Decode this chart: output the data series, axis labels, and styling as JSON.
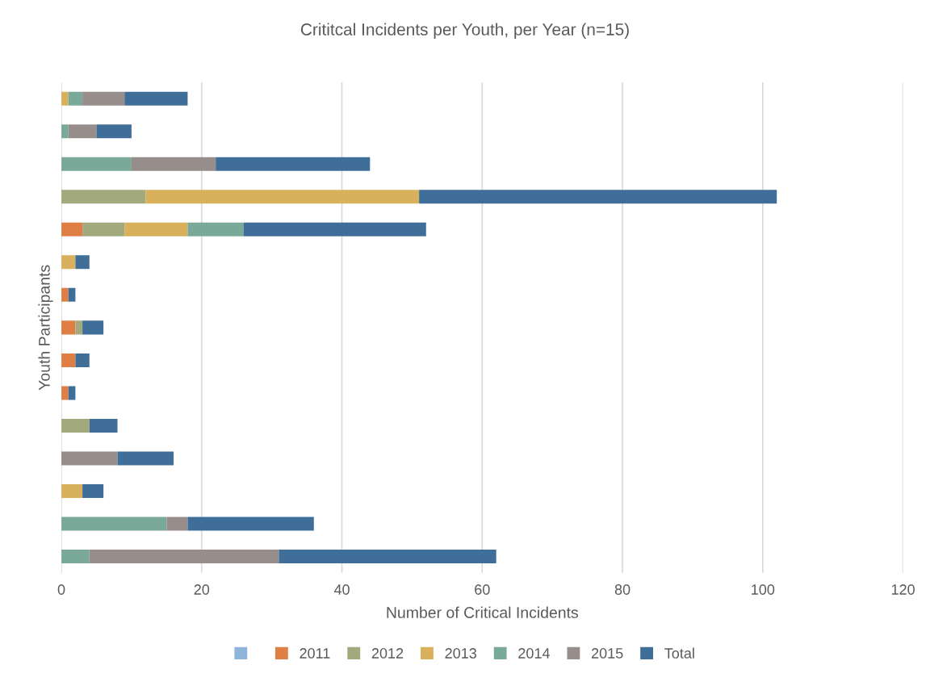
{
  "chart_data": {
    "type": "bar",
    "orientation": "horizontal",
    "stacked": true,
    "title": "Crititcal Incidents per Youth, per Year (n=15)",
    "xlabel": "Number of Critical Incidents",
    "ylabel": "Youth Participants",
    "categories": [
      null,
      null,
      null,
      null,
      null,
      null,
      null,
      null,
      null,
      null,
      null,
      null,
      null,
      null,
      null
    ],
    "series": [
      {
        "color": "#8fb4d9",
        "values": [
          0,
          0,
          0,
          0,
          0,
          0,
          0,
          0,
          0,
          0,
          0,
          0,
          0,
          0,
          0
        ]
      },
      {
        "name": "2011",
        "color": "#e07f45",
        "values": [
          0,
          0,
          0,
          0,
          3,
          0,
          1,
          2,
          2,
          1,
          0,
          0,
          0,
          0,
          0
        ]
      },
      {
        "name": "2012",
        "color": "#a2a97c",
        "values": [
          0,
          0,
          0,
          12,
          6,
          0,
          0,
          1,
          0,
          0,
          4,
          0,
          0,
          0,
          0
        ]
      },
      {
        "name": "2013",
        "color": "#d9b05b",
        "values": [
          1,
          0,
          0,
          39,
          9,
          2,
          0,
          0,
          0,
          0,
          0,
          0,
          3,
          0,
          0
        ]
      },
      {
        "name": "2014",
        "color": "#7aa899",
        "values": [
          2,
          1,
          10,
          0,
          8,
          0,
          0,
          0,
          0,
          0,
          0,
          0,
          0,
          15,
          4
        ]
      },
      {
        "name": "2015",
        "color": "#978d8b",
        "values": [
          6,
          4,
          12,
          0,
          0,
          0,
          0,
          0,
          0,
          0,
          0,
          8,
          0,
          3,
          27
        ]
      },
      {
        "name": "Total",
        "color": "#3f6f98",
        "values": [
          9,
          5,
          22,
          51,
          26,
          2,
          1,
          3,
          2,
          1,
          4,
          8,
          3,
          18,
          31
        ]
      }
    ],
    "xlim": [
      0,
      120
    ],
    "xticks": [
      0,
      20,
      40,
      60,
      80,
      100,
      120
    ],
    "grid": "x",
    "legend": "bottom"
  }
}
